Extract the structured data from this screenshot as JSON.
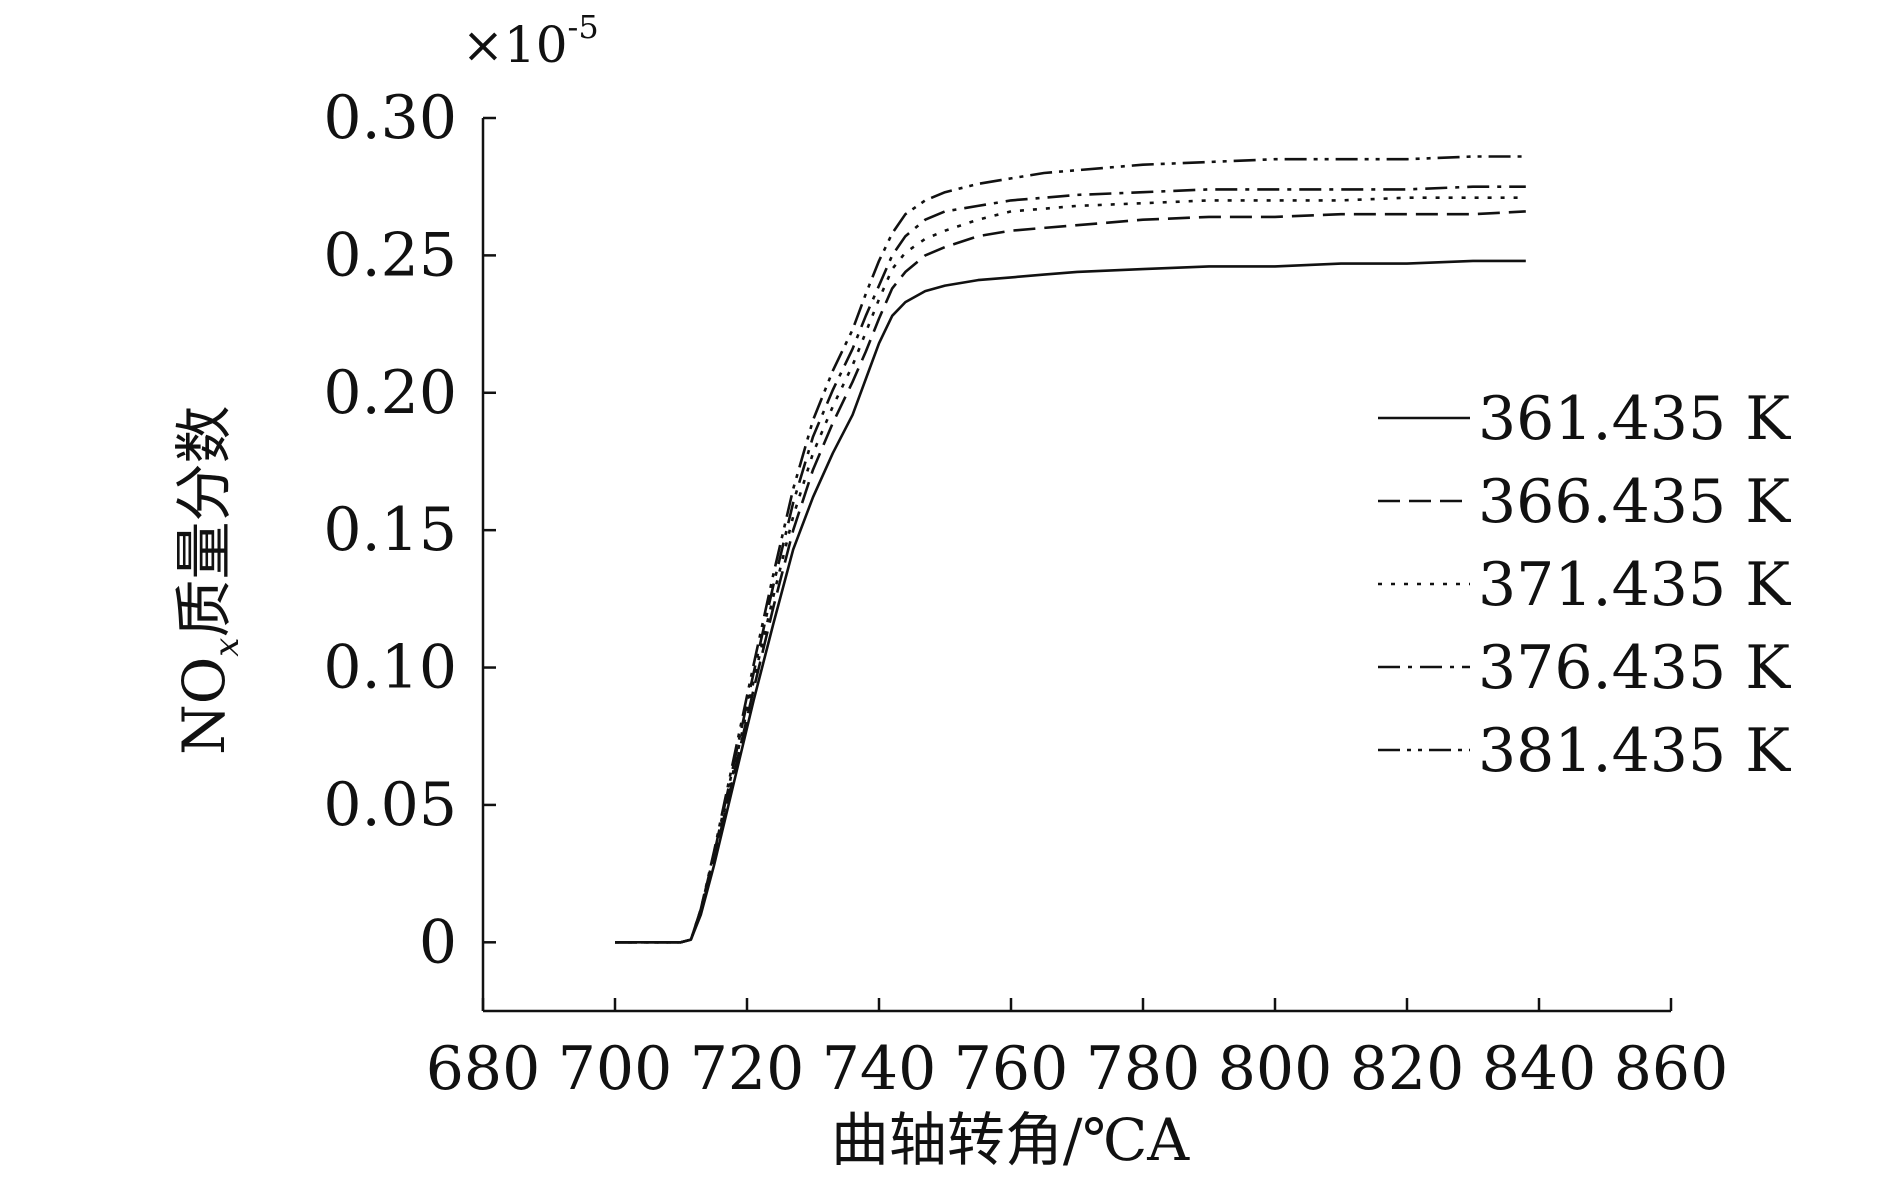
{
  "chart_data": {
    "type": "line",
    "title": "",
    "xlabel": "曲轴转角/℃A",
    "ylabel_main": "NO",
    "ylabel_sub": "x",
    "ylabel_rest": "质量分数",
    "y_multiplier": "×10",
    "y_exponent": "-5",
    "xlim": [
      680,
      860
    ],
    "ylim": [
      -0.025,
      0.3
    ],
    "x_ticks": [
      680,
      700,
      720,
      740,
      760,
      780,
      800,
      820,
      840,
      860
    ],
    "x_tick_labels": [
      "680",
      "700",
      "720",
      "740",
      "760",
      "780",
      "800",
      "820",
      "840",
      "860"
    ],
    "y_ticks": [
      0,
      0.05,
      0.1,
      0.15,
      0.2,
      0.25,
      0.3
    ],
    "y_tick_labels": [
      "0",
      "0.05",
      "0.10",
      "0.15",
      "0.20",
      "0.25",
      "0.30"
    ],
    "grid": false,
    "legend_position": "right",
    "line_color": "#111111",
    "series": [
      {
        "name": "361.435 K",
        "style": "solid",
        "x": [
          700,
          705,
          710,
          711.5,
          713,
          715,
          718,
          721,
          724,
          727,
          730,
          733,
          736,
          738,
          740,
          742,
          744,
          747,
          750,
          755,
          760,
          765,
          770,
          780,
          790,
          800,
          810,
          820,
          830,
          838
        ],
        "y": [
          0,
          0,
          0,
          0.001,
          0.01,
          0.028,
          0.058,
          0.088,
          0.116,
          0.143,
          0.162,
          0.178,
          0.192,
          0.205,
          0.218,
          0.228,
          0.233,
          0.237,
          0.239,
          0.241,
          0.242,
          0.243,
          0.244,
          0.245,
          0.246,
          0.246,
          0.247,
          0.247,
          0.248,
          0.248
        ]
      },
      {
        "name": "366.435 K",
        "style": "dash",
        "x": [
          700,
          705,
          710,
          711.5,
          713,
          715,
          718,
          721,
          724,
          727,
          730,
          733,
          736,
          738,
          740,
          742,
          744,
          747,
          750,
          755,
          760,
          765,
          770,
          780,
          790,
          800,
          810,
          820,
          830,
          838
        ],
        "y": [
          0,
          0,
          0,
          0.001,
          0.011,
          0.03,
          0.061,
          0.092,
          0.122,
          0.15,
          0.172,
          0.189,
          0.204,
          0.215,
          0.227,
          0.238,
          0.244,
          0.25,
          0.253,
          0.257,
          0.259,
          0.26,
          0.261,
          0.263,
          0.264,
          0.264,
          0.265,
          0.265,
          0.265,
          0.266
        ]
      },
      {
        "name": "371.435 K",
        "style": "dot",
        "x": [
          700,
          705,
          710,
          711.5,
          713,
          715,
          718,
          721,
          724,
          727,
          730,
          733,
          736,
          738,
          740,
          742,
          744,
          747,
          750,
          755,
          760,
          765,
          770,
          780,
          790,
          800,
          810,
          820,
          830,
          838
        ],
        "y": [
          0,
          0,
          0,
          0.001,
          0.011,
          0.031,
          0.063,
          0.095,
          0.126,
          0.155,
          0.178,
          0.195,
          0.21,
          0.222,
          0.234,
          0.245,
          0.251,
          0.256,
          0.259,
          0.263,
          0.266,
          0.267,
          0.268,
          0.269,
          0.27,
          0.27,
          0.27,
          0.271,
          0.271,
          0.271
        ]
      },
      {
        "name": "376.435 K",
        "style": "dashdot",
        "x": [
          700,
          705,
          710,
          711.5,
          713,
          715,
          718,
          721,
          724,
          727,
          730,
          733,
          736,
          738,
          740,
          742,
          744,
          747,
          750,
          755,
          760,
          765,
          770,
          780,
          790,
          800,
          810,
          820,
          830,
          838
        ],
        "y": [
          0,
          0,
          0,
          0.001,
          0.012,
          0.032,
          0.065,
          0.098,
          0.13,
          0.16,
          0.184,
          0.201,
          0.216,
          0.228,
          0.239,
          0.25,
          0.257,
          0.263,
          0.266,
          0.268,
          0.27,
          0.271,
          0.272,
          0.273,
          0.274,
          0.274,
          0.274,
          0.274,
          0.275,
          0.275
        ]
      },
      {
        "name": "381.435 K",
        "style": "dashdotdot",
        "x": [
          700,
          705,
          710,
          711.5,
          713,
          715,
          718,
          721,
          724,
          727,
          730,
          733,
          736,
          738,
          740,
          742,
          744,
          747,
          750,
          755,
          760,
          765,
          770,
          780,
          790,
          800,
          810,
          820,
          830,
          838
        ],
        "y": [
          0,
          0,
          0,
          0.001,
          0.012,
          0.033,
          0.067,
          0.101,
          0.134,
          0.165,
          0.19,
          0.208,
          0.223,
          0.236,
          0.248,
          0.258,
          0.265,
          0.27,
          0.273,
          0.276,
          0.278,
          0.28,
          0.281,
          0.283,
          0.284,
          0.285,
          0.285,
          0.285,
          0.286,
          0.286
        ]
      }
    ]
  }
}
